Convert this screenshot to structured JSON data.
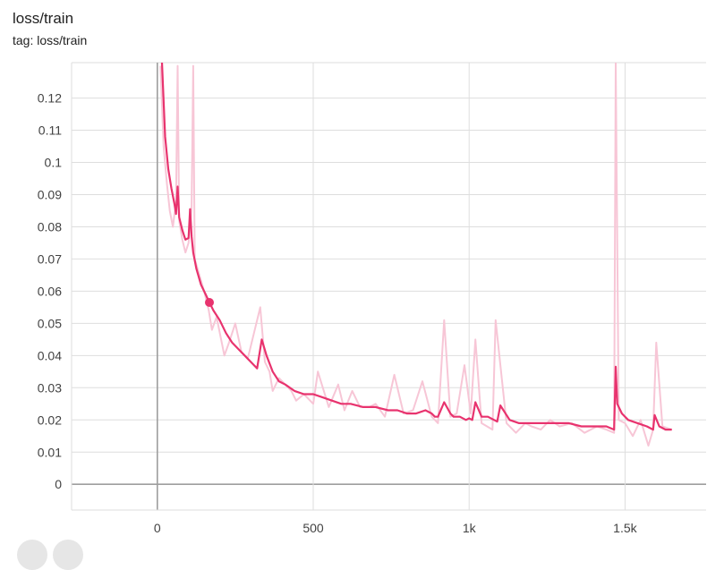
{
  "card": {
    "title": "loss/train",
    "tag": "tag: loss/train"
  },
  "colors": {
    "smoothed_line": "#e8336e",
    "raw_line": "#f7c6d6",
    "grid": "#dedede",
    "zero_axis": "#9e9e9e"
  },
  "chart_data": {
    "type": "line",
    "title": "loss/train",
    "xlabel": "",
    "ylabel": "",
    "xlim": [
      -275,
      1760
    ],
    "ylim": [
      -0.008,
      0.131
    ],
    "x_ticks": [
      0,
      500,
      1000,
      1500
    ],
    "x_tick_labels": [
      "0",
      "500",
      "1k",
      "1.5k"
    ],
    "y_ticks": [
      0,
      0.01,
      0.02,
      0.03,
      0.04,
      0.05,
      0.06,
      0.07,
      0.08,
      0.09,
      0.1,
      0.11,
      0.12
    ],
    "y_tick_labels": [
      "0",
      "0.01",
      "0.02",
      "0.03",
      "0.04",
      "0.05",
      "0.06",
      "0.07",
      "0.08",
      "0.09",
      "0.1",
      "0.11",
      "0.12"
    ],
    "grid": true,
    "highlight_point": {
      "x": 167,
      "y": 0.0565
    },
    "series": [
      {
        "name": "",
        "style": "raw",
        "x": [
          10,
          20,
          30,
          40,
          50,
          60,
          65,
          70,
          80,
          90,
          100,
          110,
          115,
          120,
          135,
          150,
          165,
          175,
          190,
          215,
          230,
          250,
          270,
          290,
          310,
          330,
          345,
          360,
          370,
          390,
          410,
          430,
          445,
          470,
          500,
          515,
          550,
          580,
          600,
          625,
          650,
          680,
          700,
          730,
          760,
          790,
          820,
          850,
          880,
          900,
          920,
          940,
          960,
          985,
          1005,
          1020,
          1040,
          1075,
          1085,
          1120,
          1150,
          1180,
          1200,
          1230,
          1260,
          1290,
          1330,
          1370,
          1410,
          1440,
          1465,
          1470,
          1480,
          1500,
          1525,
          1550,
          1575,
          1590,
          1600,
          1620,
          1650
        ],
        "y": [
          0.13,
          0.105,
          0.094,
          0.085,
          0.08,
          0.088,
          0.13,
          0.082,
          0.076,
          0.072,
          0.075,
          0.086,
          0.13,
          0.07,
          0.065,
          0.06,
          0.054,
          0.048,
          0.052,
          0.04,
          0.044,
          0.05,
          0.041,
          0.039,
          0.047,
          0.055,
          0.038,
          0.035,
          0.029,
          0.033,
          0.031,
          0.029,
          0.026,
          0.028,
          0.025,
          0.035,
          0.024,
          0.031,
          0.023,
          0.029,
          0.024,
          0.024,
          0.025,
          0.021,
          0.034,
          0.022,
          0.023,
          0.032,
          0.021,
          0.019,
          0.051,
          0.021,
          0.022,
          0.037,
          0.022,
          0.045,
          0.019,
          0.017,
          0.051,
          0.019,
          0.016,
          0.019,
          0.018,
          0.017,
          0.02,
          0.018,
          0.019,
          0.016,
          0.018,
          0.017,
          0.016,
          0.131,
          0.02,
          0.019,
          0.015,
          0.02,
          0.012,
          0.017,
          0.044,
          0.018,
          0.017
        ]
      },
      {
        "name": "",
        "style": "smoothed",
        "x": [
          15,
          25,
          35,
          45,
          55,
          60,
          65,
          70,
          80,
          90,
          100,
          105,
          110,
          115,
          125,
          140,
          155,
          167,
          180,
          200,
          220,
          240,
          260,
          280,
          300,
          310,
          320,
          335,
          350,
          370,
          390,
          410,
          440,
          470,
          500,
          530,
          560,
          590,
          620,
          660,
          700,
          740,
          770,
          800,
          830,
          860,
          880,
          890,
          900,
          920,
          940,
          950,
          970,
          990,
          1000,
          1010,
          1020,
          1040,
          1060,
          1080,
          1090,
          1100,
          1130,
          1160,
          1200,
          1240,
          1280,
          1320,
          1360,
          1400,
          1440,
          1465,
          1470,
          1475,
          1490,
          1510,
          1540,
          1570,
          1590,
          1595,
          1610,
          1630,
          1650
        ],
        "y": [
          0.131,
          0.108,
          0.098,
          0.092,
          0.087,
          0.084,
          0.0925,
          0.083,
          0.079,
          0.076,
          0.0765,
          0.0855,
          0.077,
          0.072,
          0.067,
          0.062,
          0.059,
          0.0565,
          0.054,
          0.051,
          0.047,
          0.044,
          0.042,
          0.04,
          0.038,
          0.037,
          0.036,
          0.045,
          0.04,
          0.035,
          0.032,
          0.031,
          0.029,
          0.028,
          0.028,
          0.027,
          0.026,
          0.025,
          0.025,
          0.024,
          0.024,
          0.023,
          0.023,
          0.022,
          0.022,
          0.023,
          0.022,
          0.021,
          0.021,
          0.0255,
          0.022,
          0.021,
          0.021,
          0.02,
          0.0205,
          0.02,
          0.0255,
          0.021,
          0.021,
          0.02,
          0.0195,
          0.0245,
          0.02,
          0.019,
          0.019,
          0.019,
          0.019,
          0.019,
          0.018,
          0.018,
          0.018,
          0.017,
          0.0365,
          0.025,
          0.022,
          0.02,
          0.019,
          0.018,
          0.017,
          0.0215,
          0.018,
          0.017,
          0.017
        ]
      }
    ]
  }
}
